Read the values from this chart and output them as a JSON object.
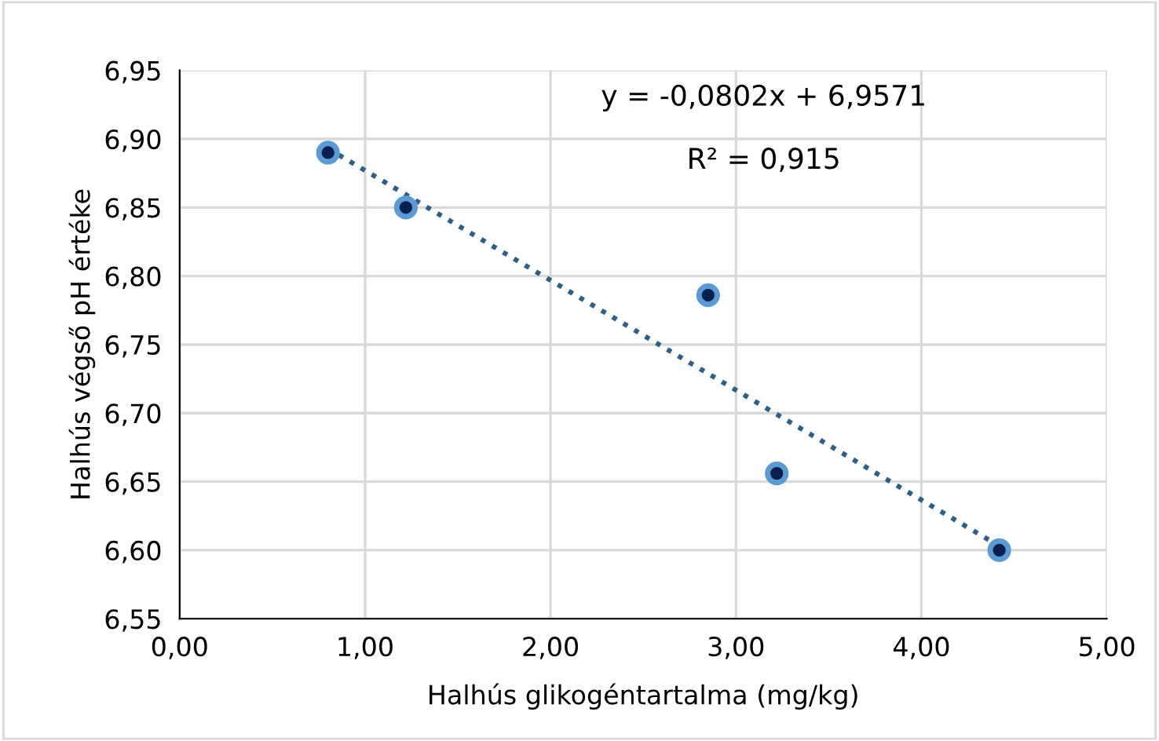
{
  "chart_data": {
    "type": "scatter",
    "xlabel": "Halhús glikogéntartalma (mg/kg)",
    "ylabel": "Halhús végső pH értéke",
    "series": [
      {
        "color": "#5b9bd5",
        "x": [
          0.8,
          1.22,
          2.85,
          3.22,
          4.42
        ],
        "values": [
          6.89,
          6.85,
          6.786,
          6.656,
          6.6
        ],
        "marker": "circle"
      },
      {
        "type": "line",
        "color": "#2e5f8a",
        "x": [
          0.8,
          4.42
        ],
        "values": [
          6.893,
          6.603
        ],
        "line_style": "dotted",
        "marker": "none"
      }
    ],
    "annotations": [
      "y = -0,0802x + 6,9571",
      "R² = 0,915"
    ],
    "xlim": [
      0,
      5
    ],
    "ylim": [
      6.55,
      6.95
    ],
    "xticks": [
      {
        "value": 0,
        "label": "0,00"
      },
      {
        "value": 1,
        "label": "1,00"
      },
      {
        "value": 2,
        "label": "2,00"
      },
      {
        "value": 3,
        "label": "3,00"
      },
      {
        "value": 4,
        "label": "4,00"
      },
      {
        "value": 5,
        "label": "5,00"
      }
    ],
    "yticks": [
      {
        "value": 6.55,
        "label": "6,55"
      },
      {
        "value": 6.6,
        "label": "6,60"
      },
      {
        "value": 6.65,
        "label": "6,65"
      },
      {
        "value": 6.7,
        "label": "6,70"
      },
      {
        "value": 6.75,
        "label": "6,75"
      },
      {
        "value": 6.8,
        "label": "6,80"
      },
      {
        "value": 6.85,
        "label": "6,85"
      },
      {
        "value": 6.9,
        "label": "6,90"
      },
      {
        "value": 6.95,
        "label": "6,95"
      }
    ],
    "grid": true
  }
}
